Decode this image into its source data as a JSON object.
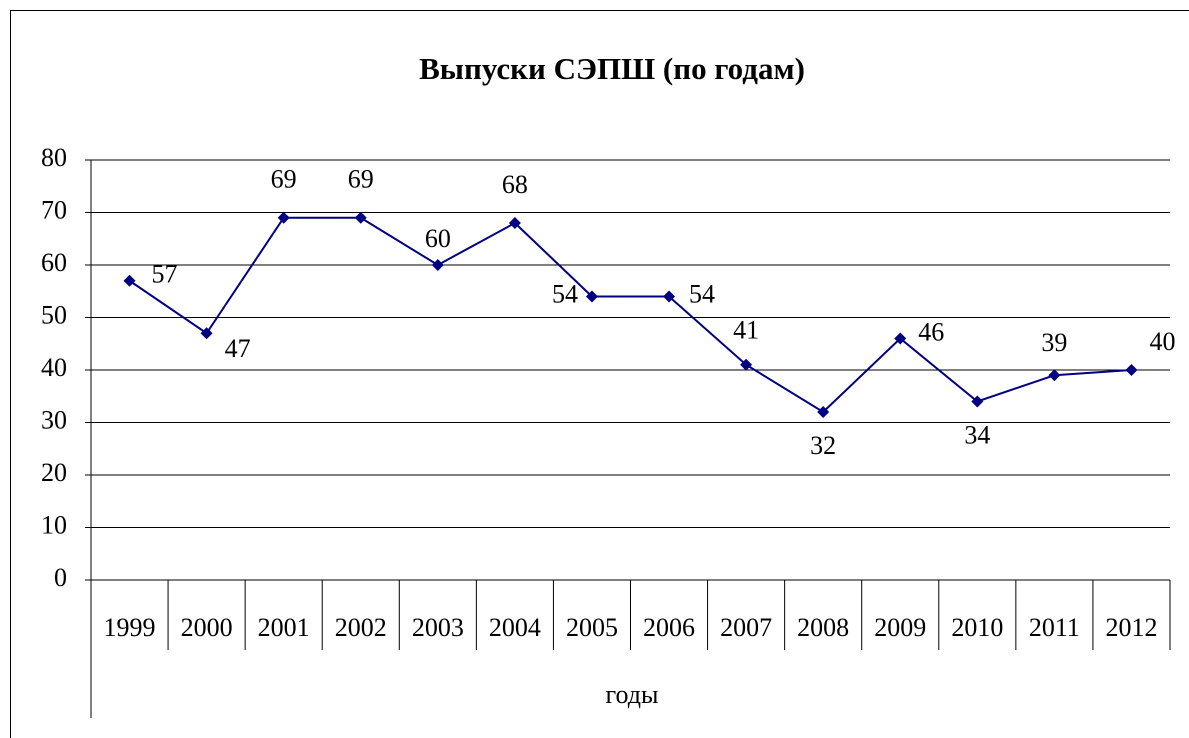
{
  "chart_data": {
    "type": "line",
    "title": "Выпуски СЭПШ (по годам)",
    "x_label": "годы",
    "categories": [
      "1999",
      "2000",
      "2001",
      "2002",
      "2003",
      "2004",
      "2005",
      "2006",
      "2007",
      "2008",
      "2009",
      "2010",
      "2011",
      "2012"
    ],
    "series": [
      {
        "name": "Выпуски",
        "color": "#000080",
        "values": [
          57,
          47,
          69,
          69,
          60,
          68,
          54,
          54,
          41,
          32,
          46,
          34,
          39,
          40
        ]
      }
    ],
    "ylim": [
      0,
      80
    ],
    "yticks": [
      0,
      10,
      20,
      30,
      40,
      50,
      60,
      70,
      80
    ],
    "grid": true
  }
}
